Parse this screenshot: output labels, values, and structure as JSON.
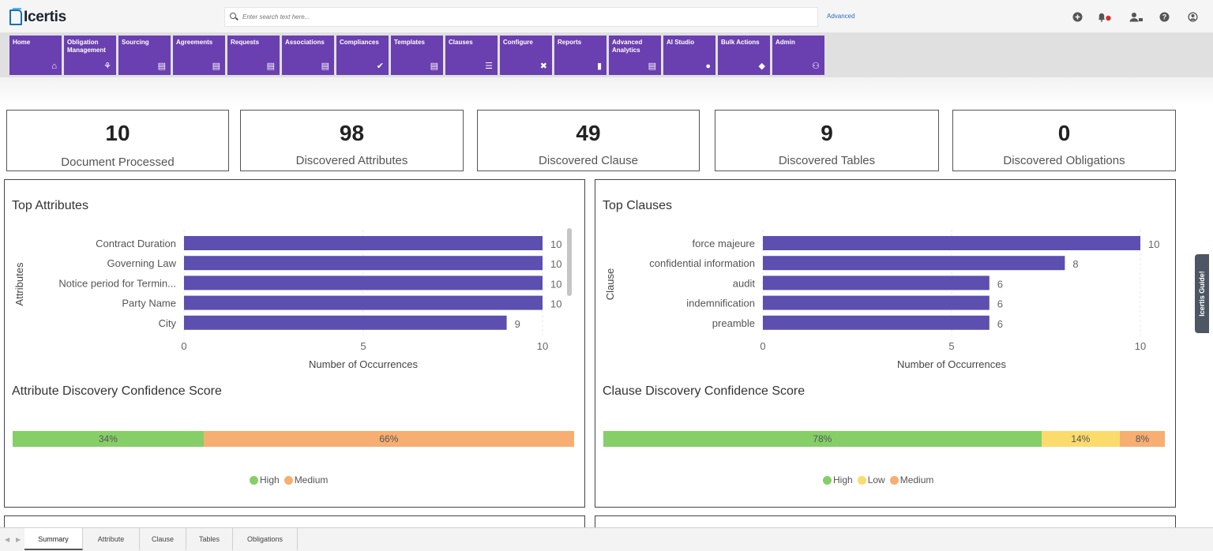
{
  "brand": {
    "name": "Icertis"
  },
  "search": {
    "placeholder": "Enter search text here...",
    "advanced_label": "Advanced"
  },
  "header_icons": [
    "add-icon",
    "notification-bell-icon",
    "users-icon",
    "help-icon",
    "user-profile-icon"
  ],
  "nav": [
    {
      "label": "Home",
      "icon": "home-icon",
      "glyph": "⌂"
    },
    {
      "label": "Obligation Management",
      "icon": "handshake-icon",
      "glyph": "⚘"
    },
    {
      "label": "Sourcing",
      "icon": "document-icon",
      "glyph": "▤"
    },
    {
      "label": "Agreements",
      "icon": "document-icon",
      "glyph": "▤"
    },
    {
      "label": "Requests",
      "icon": "document-icon",
      "glyph": "▤"
    },
    {
      "label": "Associations",
      "icon": "document-icon",
      "glyph": "▤"
    },
    {
      "label": "Compliances",
      "icon": "checkmarks-icon",
      "glyph": "✔"
    },
    {
      "label": "Templates",
      "icon": "document-icon",
      "glyph": "▤"
    },
    {
      "label": "Clauses",
      "icon": "list-icon",
      "glyph": "☰"
    },
    {
      "label": "Configure",
      "icon": "tools-icon",
      "glyph": "✖"
    },
    {
      "label": "Reports",
      "icon": "clipboard-icon",
      "glyph": "▮"
    },
    {
      "label": "Advanced Analytics",
      "icon": "document-icon",
      "glyph": "▤"
    },
    {
      "label": "AI Studio",
      "icon": "lightbulb-icon",
      "glyph": "●"
    },
    {
      "label": "Bulk Actions",
      "icon": "layers-icon",
      "glyph": "◆"
    },
    {
      "label": "Admin",
      "icon": "people-icon",
      "glyph": "⚇"
    }
  ],
  "stats": [
    {
      "value": "10",
      "label": "Document Processed"
    },
    {
      "value": "98",
      "label": "Discovered Attributes"
    },
    {
      "value": "49",
      "label": "Discovered Clause"
    },
    {
      "value": "9",
      "label": "Discovered Tables"
    },
    {
      "value": "0",
      "label": "Discovered Obligations"
    }
  ],
  "attributes_panel": {
    "title": "Top Attributes",
    "confidence_title": "Attribute Discovery Confidence Score",
    "confidence": [
      {
        "label": "34%",
        "value": 34,
        "color": "#86cf68",
        "legend": "High"
      },
      {
        "label": "66%",
        "value": 66,
        "color": "#f7ae72",
        "legend": "Medium"
      }
    ]
  },
  "clauses_panel": {
    "title": "Top Clauses",
    "confidence_title": "Clause Discovery Confidence Score",
    "confidence": [
      {
        "label": "78%",
        "value": 78,
        "color": "#86cf68",
        "legend": "High"
      },
      {
        "label": "14%",
        "value": 14,
        "color": "#fadb6c",
        "legend": "Low"
      },
      {
        "label": "8%",
        "value": 8,
        "color": "#f7ae72",
        "legend": "Medium"
      }
    ]
  },
  "chart_data": [
    {
      "type": "bar",
      "orientation": "horizontal",
      "title": "Top Attributes",
      "xlabel": "Number of Occurrences",
      "ylabel": "Attributes",
      "categories": [
        "Contract Duration",
        "Governing Law",
        "Notice period for Termin...",
        "Party Name",
        "City"
      ],
      "values": [
        10,
        10,
        10,
        10,
        9
      ],
      "xlim": [
        0,
        10
      ],
      "xticks": [
        0,
        5,
        10
      ],
      "color": "#5c4fb0"
    },
    {
      "type": "bar",
      "orientation": "horizontal",
      "title": "Top Clauses",
      "xlabel": "Number of Occurrences",
      "ylabel": "Clause",
      "categories": [
        "force majeure",
        "confidential information",
        "audit",
        "indemnification",
        "preamble"
      ],
      "values": [
        10,
        8,
        6,
        6,
        6
      ],
      "xlim": [
        0,
        10
      ],
      "xticks": [
        0,
        5,
        10
      ],
      "color": "#5c4fb0"
    }
  ],
  "side_tab": {
    "label": "Icertis Guide!"
  },
  "bottom_tabs": [
    "Summary",
    "Attribute",
    "Clause",
    "Tables",
    "Obligations"
  ],
  "active_tab": "Summary"
}
